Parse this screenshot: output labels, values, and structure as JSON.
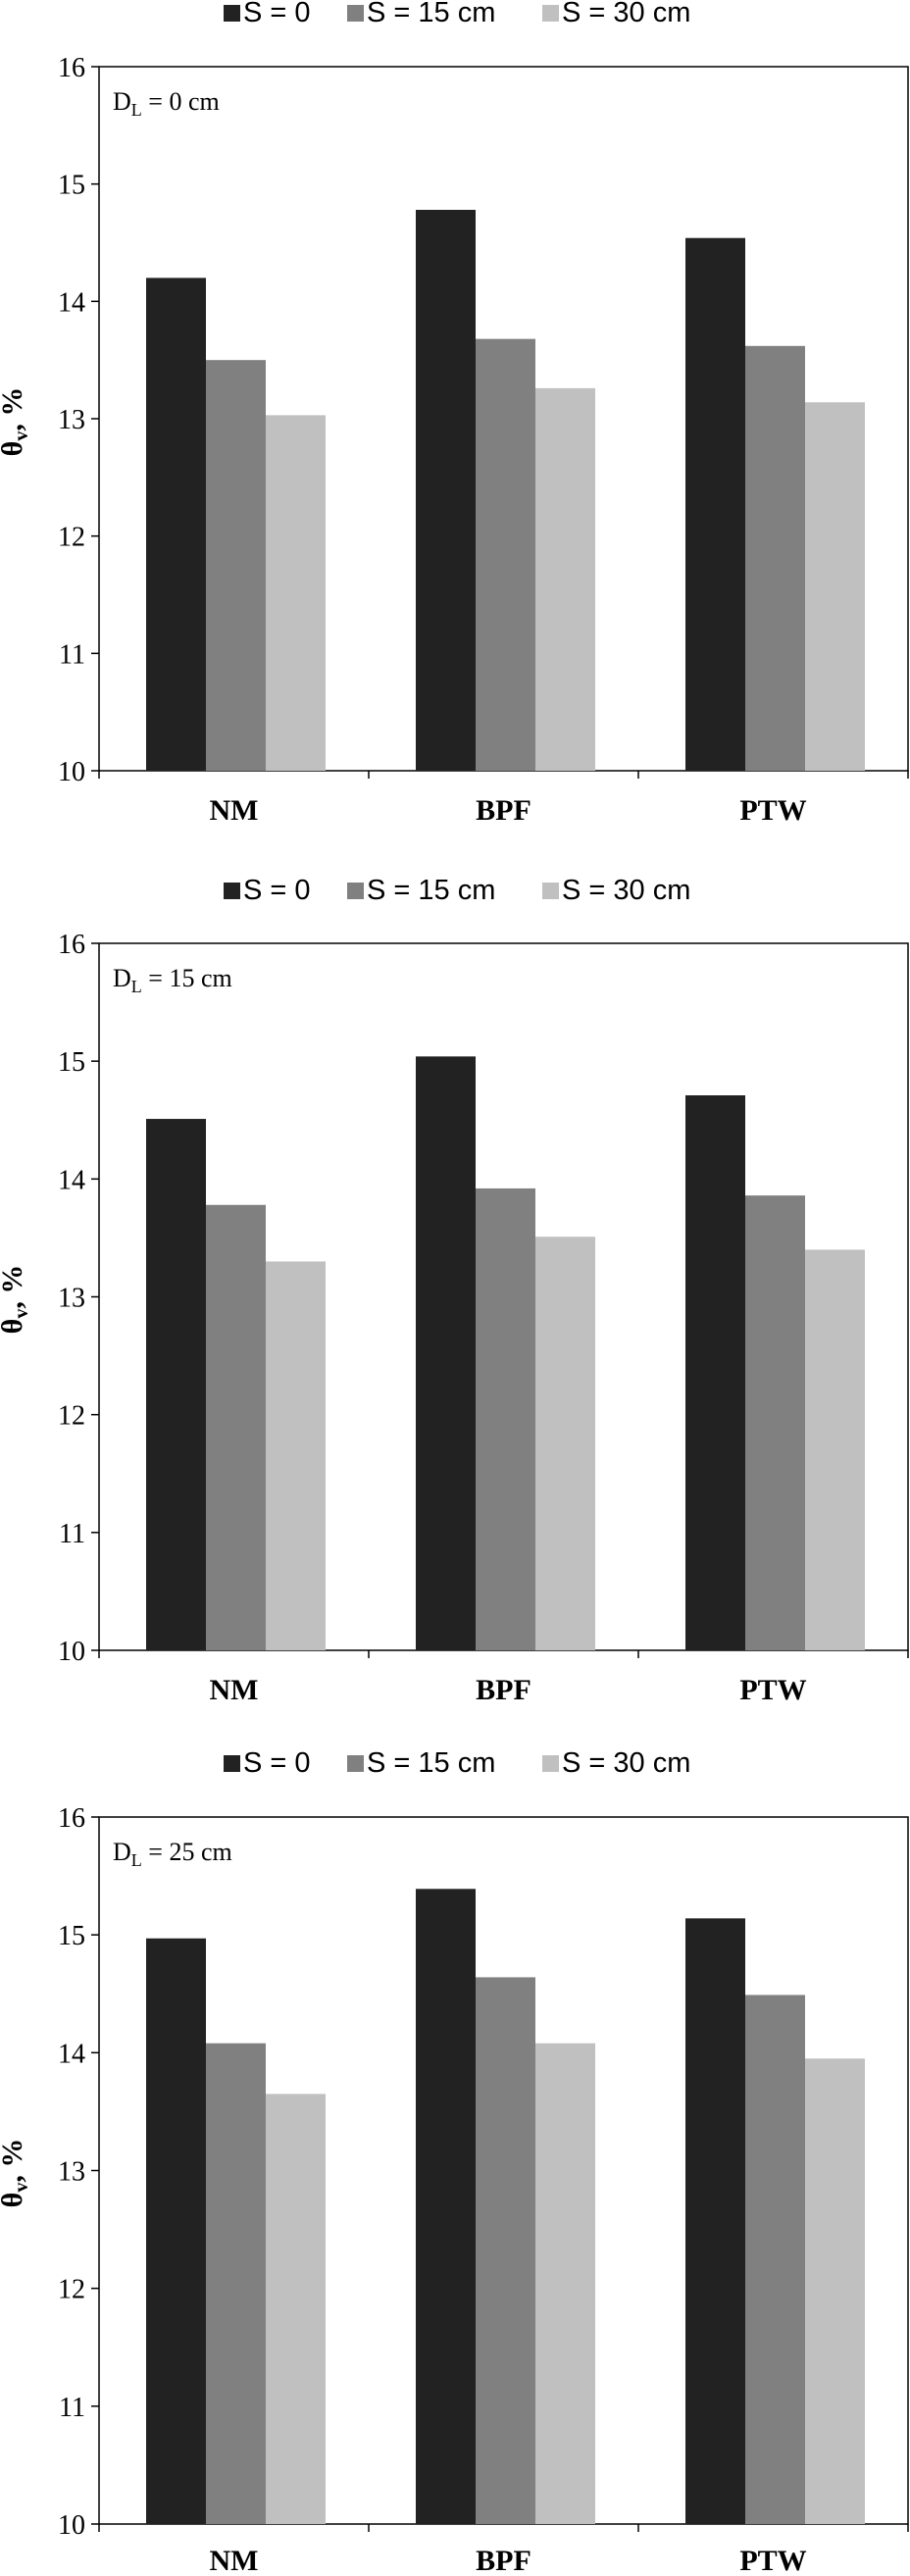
{
  "chart_data": [
    {
      "type": "bar",
      "annotation": {
        "main": "D",
        "sub": "L",
        "rest": " = 0 cm"
      },
      "ylabel": {
        "main": "θ",
        "sub": "v",
        "rest": ", %"
      },
      "ylim": [
        10,
        16
      ],
      "yticks": [
        "10",
        "11",
        "12",
        "13",
        "14",
        "15",
        "16"
      ],
      "categories": [
        "NM",
        "BPF",
        "PTW"
      ],
      "legend_position": "top",
      "series": [
        {
          "name": "S = 0",
          "color": "#222222",
          "values": [
            14.2,
            14.78,
            14.54
          ]
        },
        {
          "name": "S = 15 cm",
          "color": "#808080",
          "values": [
            13.5,
            13.68,
            13.62
          ]
        },
        {
          "name": "S = 30 cm",
          "color": "#c0c0c0",
          "values": [
            13.03,
            13.26,
            13.14
          ]
        }
      ]
    },
    {
      "type": "bar",
      "annotation": {
        "main": "D",
        "sub": "L",
        "rest": " = 15 cm"
      },
      "ylabel": {
        "main": "θ",
        "sub": "v",
        "rest": ", %"
      },
      "ylim": [
        10,
        16
      ],
      "yticks": [
        "10",
        "11",
        "12",
        "13",
        "14",
        "15",
        "16"
      ],
      "categories": [
        "NM",
        "BPF",
        "PTW"
      ],
      "legend_position": "top",
      "series": [
        {
          "name": "S = 0",
          "color": "#222222",
          "values": [
            14.51,
            15.04,
            14.71
          ]
        },
        {
          "name": "S = 15 cm",
          "color": "#808080",
          "values": [
            13.78,
            13.92,
            13.86
          ]
        },
        {
          "name": "S = 30 cm",
          "color": "#c0c0c0",
          "values": [
            13.3,
            13.51,
            13.4
          ]
        }
      ]
    },
    {
      "type": "bar",
      "annotation": {
        "main": "D",
        "sub": "L",
        "rest": " = 25 cm"
      },
      "ylabel": {
        "main": "θ",
        "sub": "v",
        "rest": ", %"
      },
      "ylim": [
        10,
        16
      ],
      "yticks": [
        "10",
        "11",
        "12",
        "13",
        "14",
        "15",
        "16"
      ],
      "categories": [
        "NM",
        "BPF",
        "PTW"
      ],
      "legend_position": "top",
      "series": [
        {
          "name": "S = 0",
          "color": "#222222",
          "values": [
            14.97,
            15.39,
            15.14
          ]
        },
        {
          "name": "S = 15 cm",
          "color": "#808080",
          "values": [
            14.08,
            14.64,
            14.49
          ]
        },
        {
          "name": "S = 30 cm",
          "color": "#c0c0c0",
          "values": [
            13.65,
            14.08,
            13.95
          ]
        }
      ]
    }
  ]
}
